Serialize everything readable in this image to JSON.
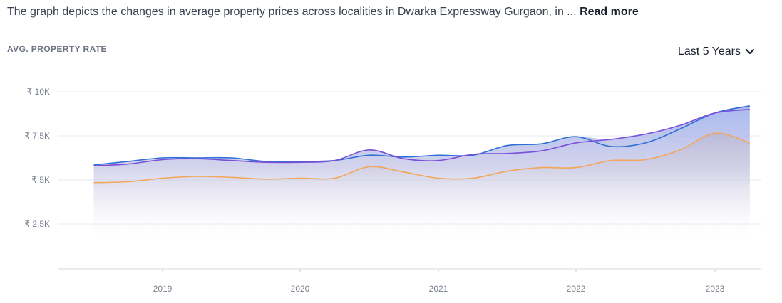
{
  "description": {
    "text": "The graph depicts the changes in average property prices across localities in Dwarka Expressway Gurgaon, in ...",
    "read_more": "Read more"
  },
  "metric_label": "AVG. PROPERTY RATE",
  "range_selector": {
    "label": "Last 5 Years",
    "icon": "chevron-down-icon"
  },
  "colors": {
    "blue_line": "#2f6fd6",
    "purple_line": "#7b4fd8",
    "orange_line": "#f2a65a",
    "area_top": "#9fb4ec",
    "grid": "#e6e8ee"
  },
  "chart_data": {
    "type": "area",
    "x_tick_labels": [
      "2019",
      "2020",
      "2021",
      "2022",
      "2023"
    ],
    "y_tick_labels": [
      "₹ 10K",
      "₹ 7.5K",
      "₹ 5K",
      "₹ 2.5K"
    ],
    "ylim": [
      0,
      10000
    ],
    "xlim": [
      2018.5,
      2023.3
    ],
    "grid": true,
    "series": [
      {
        "color": "#2f6fd6",
        "x": [
          2018.5,
          2018.75,
          2019.0,
          2019.25,
          2019.5,
          2019.75,
          2020.0,
          2020.25,
          2020.5,
          2020.75,
          2021.0,
          2021.25,
          2021.5,
          2021.75,
          2022.0,
          2022.25,
          2022.5,
          2022.75,
          2023.0,
          2023.25
        ],
        "values": [
          5850,
          6050,
          6250,
          6250,
          6250,
          6050,
          6050,
          6100,
          6400,
          6300,
          6400,
          6400,
          6950,
          7050,
          7450,
          6900,
          7100,
          7900,
          8800,
          9200
        ]
      },
      {
        "color": "#7b4fd8",
        "x": [
          2018.5,
          2018.75,
          2019.0,
          2019.25,
          2019.5,
          2019.75,
          2020.0,
          2020.25,
          2020.5,
          2020.75,
          2021.0,
          2021.25,
          2021.5,
          2021.75,
          2022.0,
          2022.25,
          2022.5,
          2022.75,
          2023.0,
          2023.25
        ],
        "values": [
          5800,
          5900,
          6150,
          6200,
          6100,
          6000,
          6000,
          6100,
          6700,
          6200,
          6100,
          6450,
          6500,
          6650,
          7100,
          7300,
          7600,
          8100,
          8800,
          9000
        ]
      },
      {
        "color": "#f2a65a",
        "x": [
          2018.5,
          2018.75,
          2019.0,
          2019.25,
          2019.5,
          2019.75,
          2020.0,
          2020.25,
          2020.5,
          2020.75,
          2021.0,
          2021.25,
          2021.5,
          2021.75,
          2022.0,
          2022.25,
          2022.5,
          2022.75,
          2023.0,
          2023.25
        ],
        "values": [
          4850,
          4900,
          5100,
          5200,
          5150,
          5050,
          5100,
          5100,
          5750,
          5450,
          5100,
          5100,
          5500,
          5700,
          5700,
          6100,
          6150,
          6700,
          7650,
          7100
        ]
      }
    ]
  }
}
